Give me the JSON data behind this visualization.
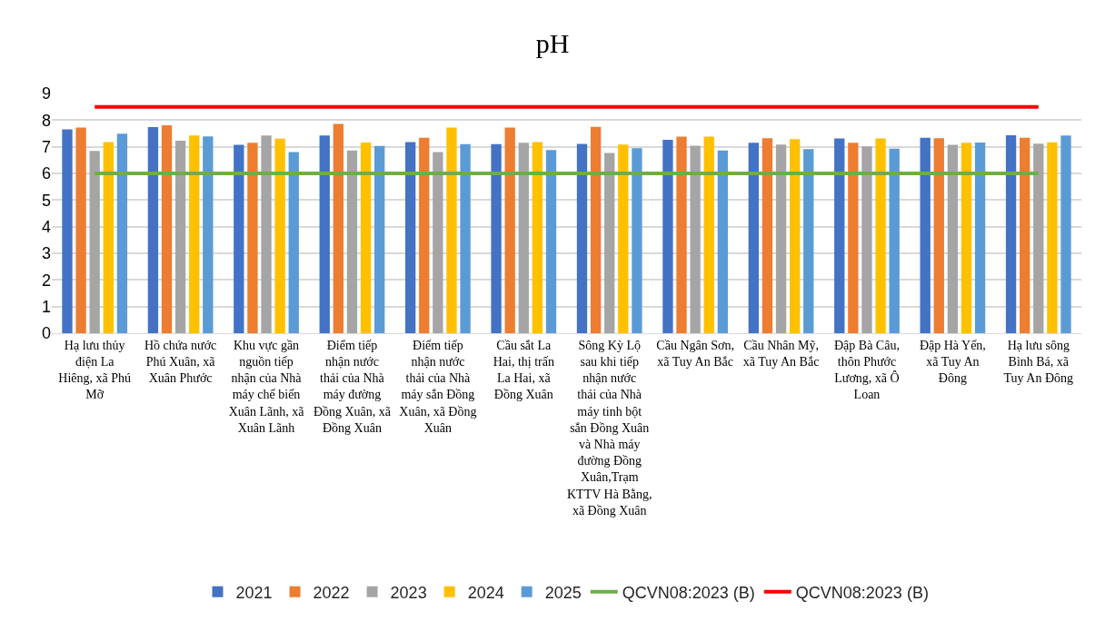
{
  "chart_data": {
    "type": "bar",
    "title": "pH",
    "categories": [
      "Hạ lưu thủy điện La Hiêng, xã Phú Mỡ",
      "Hồ chứa nước Phú Xuân, xã Xuân Phước",
      "Khu vực gần nguồn tiếp nhận của Nhà máy chế biến Xuân Lãnh, xã Xuân Lãnh",
      "Điểm tiếp nhận nước thải của Nhà máy đường Đồng Xuân, xã Đồng Xuân",
      "Điểm tiếp nhận nước thải của Nhà máy sắn Đồng Xuân, xã Đồng Xuân",
      "Cầu sắt La Hai, thị trấn La Hai, xã Đồng Xuân",
      "Sông Kỳ Lộ sau khi tiếp nhận nước thải của Nhà máy tinh bột sắn Đồng Xuân và Nhà máy đường Đồng Xuân,Trạm KTTV Hà Bằng, xã Đồng Xuân",
      "Cầu Ngân Sơn, xã Tuy An Bắc",
      "Cầu Nhân Mỹ, xã Tuy An Bắc",
      "Đập Bà Câu, thôn Phước Lương, xã Ô Loan",
      "Đập Hà Yến, xã Tuy An Đông",
      "Hạ lưu sông Bình Bá, xã Tuy An Đông"
    ],
    "series": [
      {
        "name": "2021",
        "color": "#4472c4",
        "values": [
          7.65,
          7.74,
          7.07,
          7.42,
          7.18,
          7.1,
          7.11,
          7.26,
          7.15,
          7.31,
          7.34,
          7.43
        ]
      },
      {
        "name": "2022",
        "color": "#ed7d31",
        "values": [
          7.72,
          7.81,
          7.15,
          7.86,
          7.34,
          7.72,
          7.75,
          7.38,
          7.32,
          7.15,
          7.32,
          7.34
        ]
      },
      {
        "name": "2023",
        "color": "#a5a5a5",
        "values": [
          6.84,
          7.23,
          7.42,
          6.86,
          6.8,
          7.15,
          6.77,
          7.04,
          7.08,
          7.01,
          7.07,
          7.12
        ]
      },
      {
        "name": "2024",
        "color": "#ffc000",
        "values": [
          7.18,
          7.42,
          7.3,
          7.16,
          7.72,
          7.18,
          7.08,
          7.38,
          7.29,
          7.31,
          7.15,
          7.17
        ]
      },
      {
        "name": "2025",
        "color": "#5b9bd5",
        "values": [
          7.49,
          7.39,
          6.8,
          7.03,
          7.1,
          6.88,
          6.95,
          6.86,
          6.91,
          6.93,
          7.16,
          7.42
        ]
      },
      {
        "name": "QCVN08:2023 (B)",
        "type": "line",
        "color": "#70ad47",
        "values": [
          6,
          6,
          6,
          6,
          6,
          6,
          6,
          6,
          6,
          6,
          6,
          6
        ]
      },
      {
        "name": "QCVN08:2023 (B)",
        "type": "line",
        "color": "#ff0000",
        "values": [
          8.5,
          8.5,
          8.5,
          8.5,
          8.5,
          8.5,
          8.5,
          8.5,
          8.5,
          8.5,
          8.5,
          8.5
        ]
      }
    ],
    "ylim": [
      0,
      9
    ],
    "yticks": [
      0,
      1,
      2,
      3,
      4,
      5,
      6,
      7,
      8,
      9
    ],
    "grid": "y",
    "legend": "bottom"
  }
}
